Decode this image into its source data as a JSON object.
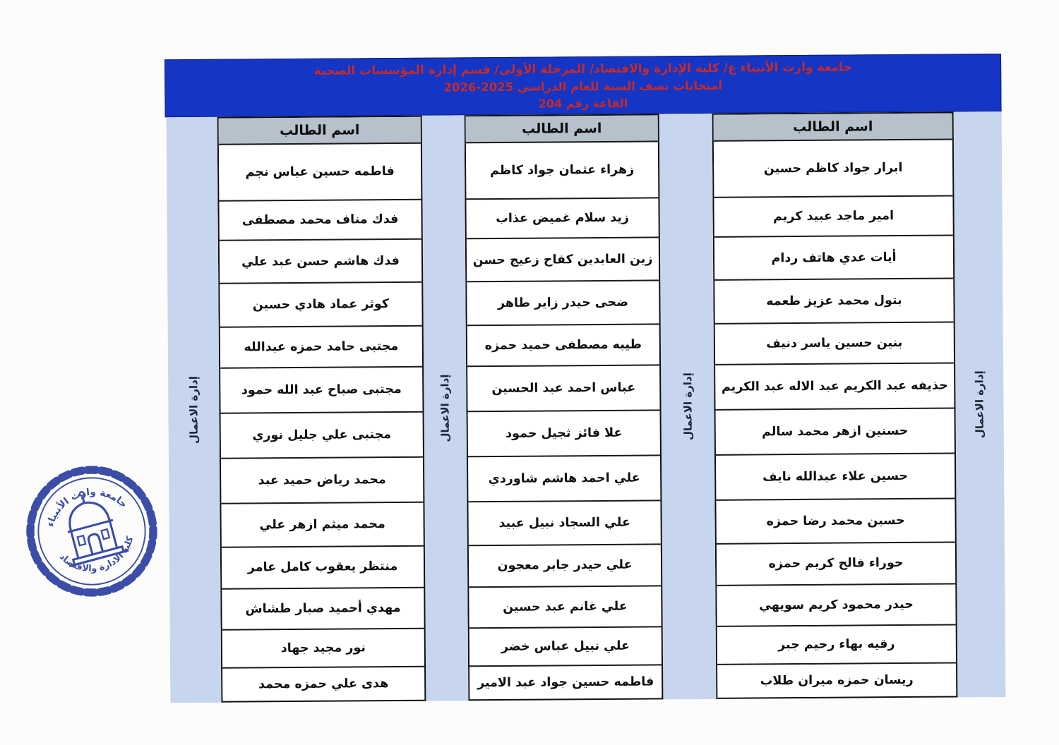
{
  "document": {
    "banner": {
      "line1": "جامعة وارث الأنبياء ع/ كلية الإدارة والاقتصاد/ المرحلة الأولى/ قسم إدارة المؤسسات الصحية",
      "line2": "امتحانات نصف السنة للعام الدراسي 2025-2026",
      "line3": "القاعة رقم 204"
    },
    "table": {
      "column_header": "اسم الطالب",
      "side_strip_label": "إدارة الاعمال",
      "columns": [
        {
          "position": "right",
          "students": [
            "ابرار جواد كاظم حسين",
            "امير ماجد عبيد كريم",
            "أيات عدي هاتف ردام",
            "بتول محمد عزيز طعمه",
            "بنين حسين ياسر دنيف",
            "حذيفه عبد الكريم عبد الاله عبد الكريم",
            "حسنين ازهر محمد سالم",
            "حسين علاء عبدالله نايف",
            "حسين محمد رضا حمزه",
            "حوراء فالح كريم حمزه",
            "حيدر محمود كريم سويهي",
            "رقيه بهاء رحيم جبر",
            "ريسان حمزه ميران طلاب"
          ]
        },
        {
          "position": "middle",
          "students": [
            "زهراء عثمان جواد كاظم",
            "زيد سلام غميض عذاب",
            "زين العابدين كفاح زعيج حسن",
            "ضحى حيدر زاير طاهر",
            "طيبه مصطفى حميد حمزه",
            "عباس احمد عبد الحسين",
            "علا فائز ثجيل حمود",
            "علي احمد هاشم شاوردي",
            "علي السجاد نبيل عبيد",
            "علي حيدر جابر معجون",
            "علي غانم عبد حسين",
            "علي نبيل عباس خضر",
            "فاطمه حسين جواد عبد الامير"
          ]
        },
        {
          "position": "left",
          "students": [
            "فاطمه حسين عباس نجم",
            "فدك مناف محمد مصطفى",
            "فدك هاشم حسن عبد علي",
            "كوثر عماد هادي حسين",
            "مجتبى حامد حمزه عبدالله",
            "مجتبى صباح عبد الله حمود",
            "مجتبى علي جليل نوري",
            "محمد رياض حميد عبد",
            "محمد ميثم ازهر علي",
            "منتظر يعقوب كامل عامر",
            "مهدي أحميد صبار طشاش",
            "نور مجيد جهاد",
            "هدى علي حمزه محمد"
          ]
        }
      ]
    },
    "stamp": {
      "top_text": "جامعة وارث الأنبياء",
      "bottom_text": "كلية الادارة والاقتصاد"
    },
    "colors": {
      "banner_bg": "#1535c4",
      "banner_text": "#c62b28",
      "strip_bg": "#c7d5ef",
      "header_cell_bg": "#b7c1cb",
      "stamp_ink": "#2b3f9f"
    }
  }
}
